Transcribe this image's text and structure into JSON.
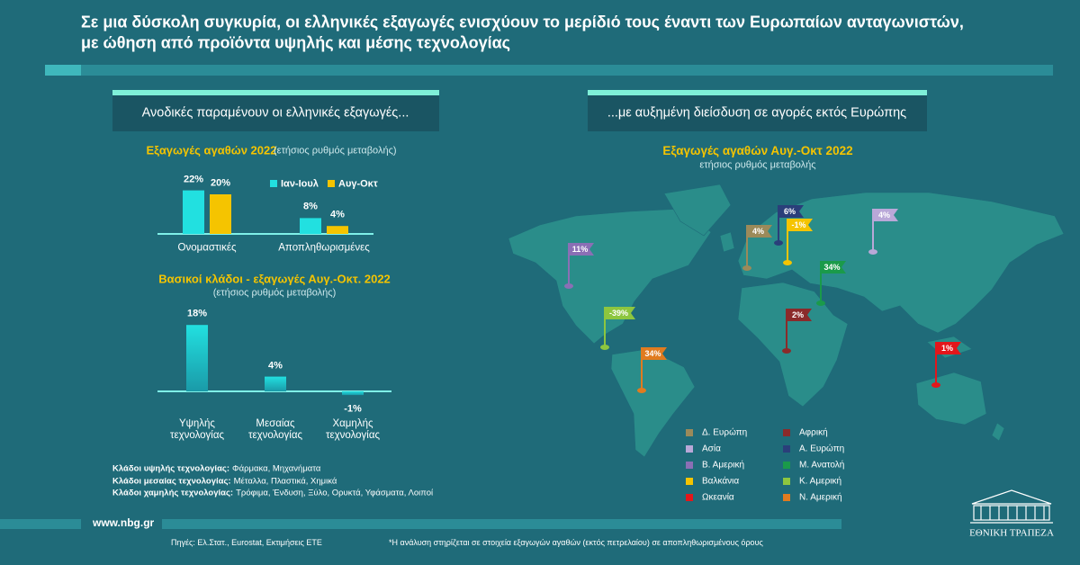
{
  "header": {
    "title": [
      "Σε μια δύσκολη συγκυρία, οι ελληνικές εξαγωγές ενισχύουν το μερίδιό τους έναντι των Ευρωπαίων ανταγωνιστών,",
      "με ώθηση από προϊόντα υψηλής και μέσης τεχνολογίας"
    ]
  },
  "left_heading": "Ανοδικές παραμένουν οι ελληνικές εξαγωγές...",
  "right_heading": "...με αυξημένη διείσδυση σε αγορές εκτός Ευρώπης",
  "chart_data": [
    {
      "type": "bar",
      "title": "Εξαγωγές αγαθών 2022",
      "subtitle": "(ετήσιος ρυθμός μεταβολής)",
      "categories": [
        "Ονομαστικές",
        "Αποπληθωρισμένες"
      ],
      "series": [
        {
          "name": "Ιαν-Ιουλ",
          "color": "#22e0e0",
          "values": [
            22,
            8
          ],
          "value_labels": [
            "22%",
            "8%"
          ]
        },
        {
          "name": "Αυγ-Οκτ",
          "color": "#f5c400",
          "values": [
            20,
            4
          ],
          "value_labels": [
            "20%",
            "4%"
          ]
        }
      ]
    },
    {
      "type": "bar",
      "title": "Βασικοί κλάδοι - εξαγωγές Αυγ.-Οκτ. 2022",
      "subtitle": "(ετήσιος ρυθμός μεταβολής)",
      "categories": [
        "Υψηλής τεχνολογίας",
        "Μεσαίας τεχνολογίας",
        "Χαμηλής τεχνολογίας"
      ],
      "values": [
        18,
        4,
        -1
      ],
      "value_labels": [
        "18%",
        "4%",
        "-1%"
      ],
      "color": "#22e0e0"
    },
    {
      "type": "map",
      "title": "Εξαγωγές αγαθών Αυγ.-Οκτ 2022",
      "subtitle": "ετήσιος ρυθμός μεταβολής",
      "categories": [
        "Δ. Ευρώπη",
        "Ασία",
        "Β. Αμερική",
        "Βαλκάνια",
        "Ωκεανία",
        "Αφρική",
        "Α. Ευρώπη",
        "Μ. Ανατολή",
        "Κ. Αμερική",
        "Ν. Αμερική"
      ],
      "colors": [
        "#9b8a5a",
        "#b9a8d8",
        "#8b6fb5",
        "#f5c400",
        "#e3161b",
        "#8b2a2a",
        "#2a3f7a",
        "#1a9a4a",
        "#8dc63f",
        "#e07b1f"
      ],
      "values": [
        4,
        4,
        11,
        -1,
        1,
        2,
        6,
        34,
        -39,
        34
      ],
      "value_labels": [
        "4%",
        "4%",
        "11%",
        "-1%",
        "1%",
        "2%",
        "6%",
        "34%",
        "-39%",
        "34%"
      ]
    }
  ],
  "notes": [
    {
      "label": "Κλάδοι υψηλής τεχνολογίας:",
      "text": "Φάρμακα, Μηχανήματα"
    },
    {
      "label": "Κλάδοι μεσαίας τεχνολογίας:",
      "text": "Μέταλλα, Πλαστικά, Χημικά"
    },
    {
      "label": "Κλάδοι χαμηλής τεχνολογίας:",
      "text": "Τρόφιμα, Ένδυση, Ξύλο, Ορυκτά, Υφάσματα, Λοιποί"
    }
  ],
  "footer": {
    "url": "www.nbg.gr",
    "sources": "Πηγές: Ελ.Στατ., Eurostat, Εκτιμήσεις ΕΤΕ",
    "note": "*Η ανάλυση στηρίζεται σε στοιχεία εξαγωγών αγαθών (εκτός πετρελαίου) σε αποπληθωρισμένους όρους",
    "logo": "ΕΘΝΙΚΗ ΤΡΑΠΕΖΑ"
  }
}
